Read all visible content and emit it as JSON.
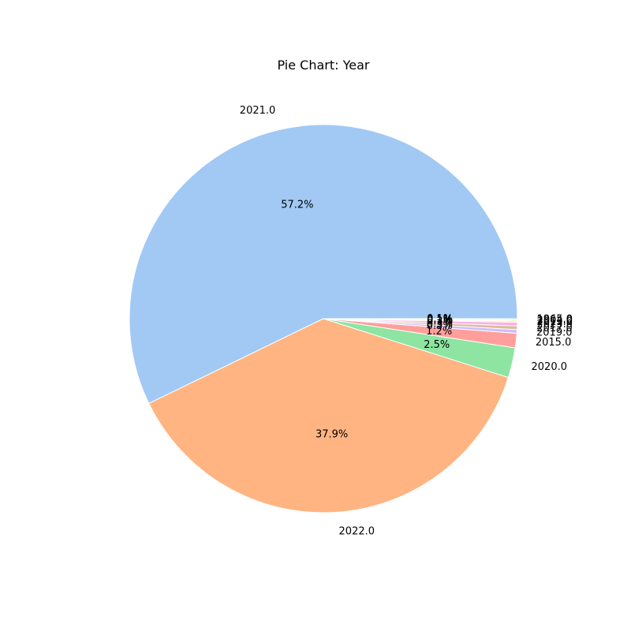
{
  "chart_data": {
    "type": "pie",
    "title": "Pie Chart: Year",
    "start_angle": 0,
    "direction": "counterclockwise",
    "slices": [
      {
        "label": "2021.0",
        "pct_label": "57.2%",
        "value": 57.2,
        "color": "#a1c9f4"
      },
      {
        "label": "2022.0",
        "pct_label": "37.9%",
        "value": 37.9,
        "color": "#ffb482"
      },
      {
        "label": "2020.0",
        "pct_label": "2.5%",
        "value": 2.5,
        "color": "#8de5a1"
      },
      {
        "label": "2015.0",
        "pct_label": "1.2%",
        "value": 1.2,
        "color": "#ff9f9b"
      },
      {
        "label": "2019.0",
        "pct_label": "0.3%",
        "value": 0.3,
        "color": "#d0bbff"
      },
      {
        "label": "2017.0",
        "pct_label": "0.3%",
        "value": 0.3,
        "color": "#debb9b"
      },
      {
        "label": "2023.0",
        "pct_label": "0.3%",
        "value": 0.3,
        "color": "#fab0e4"
      },
      {
        "label": "2013.0",
        "pct_label": "0.1%",
        "value": 0.1,
        "color": "#cfcfcf"
      },
      {
        "label": "2004.0",
        "pct_label": "0.1%",
        "value": 0.1,
        "color": "#fffea3"
      },
      {
        "label": "1965.0",
        "pct_label": "0.1%",
        "value": 0.1,
        "color": "#b9f2f0"
      }
    ]
  }
}
